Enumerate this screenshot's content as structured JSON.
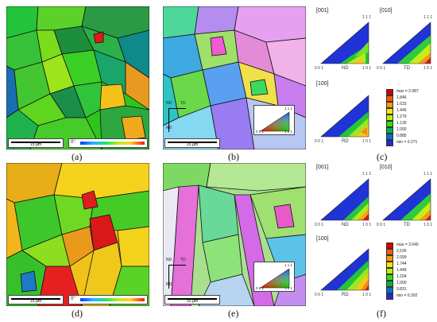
{
  "panels": {
    "a": {
      "label": "(a)",
      "scale": "15 µm"
    },
    "b": {
      "label": "(b)",
      "scale": "15 µm",
      "axis_nd": "ND",
      "axis_td": "TD",
      "axis_rd": "RD"
    },
    "c": {
      "label": "(c)"
    },
    "d": {
      "label": "(d)",
      "scale": "15 µm"
    },
    "e": {
      "label": "(e)",
      "scale": "15 µm",
      "axis_nd": "ND",
      "axis_td": "TD",
      "axis_rd": "RD"
    },
    "f": {
      "label": "(f)"
    }
  },
  "kam_legend": {
    "deg": "0°"
  },
  "ipf_key": {
    "top": "1 1 1",
    "left": "0 0 1",
    "right": "1 0 1"
  },
  "pole_figures": {
    "c": {
      "dirs": [
        "[001]",
        "[010]",
        "[100]"
      ],
      "axes": [
        "ND",
        "TD",
        "RD"
      ],
      "corner_top": "1 1 1",
      "corner_left": "0 0 1",
      "corner_right": "1 0 1",
      "legend": [
        "max = 2.087",
        "1.846",
        "1.633",
        "1.445",
        "1.279",
        "1.130",
        "1.000",
        "0.885",
        "min = 0.271"
      ]
    },
    "f": {
      "dirs": [
        "[001]",
        "[010]",
        "[100]"
      ],
      "axes": [
        "ND",
        "TD",
        "RD"
      ],
      "corner_top": "1 1 1",
      "corner_left": "0 0 1",
      "corner_right": "1 0 1",
      "legend": [
        "max = 3.040",
        "2.526",
        "2.099",
        "1.744",
        "1.449",
        "1.204",
        "1.000",
        "0.831",
        "min = 0.392"
      ]
    }
  },
  "colors": {
    "legend_scale": [
      "#d40000",
      "#ff5a00",
      "#ff9a00",
      "#ffe600",
      "#b8f000",
      "#33e000",
      "#00b24a",
      "#0070d0",
      "#1e2bd2"
    ]
  }
}
